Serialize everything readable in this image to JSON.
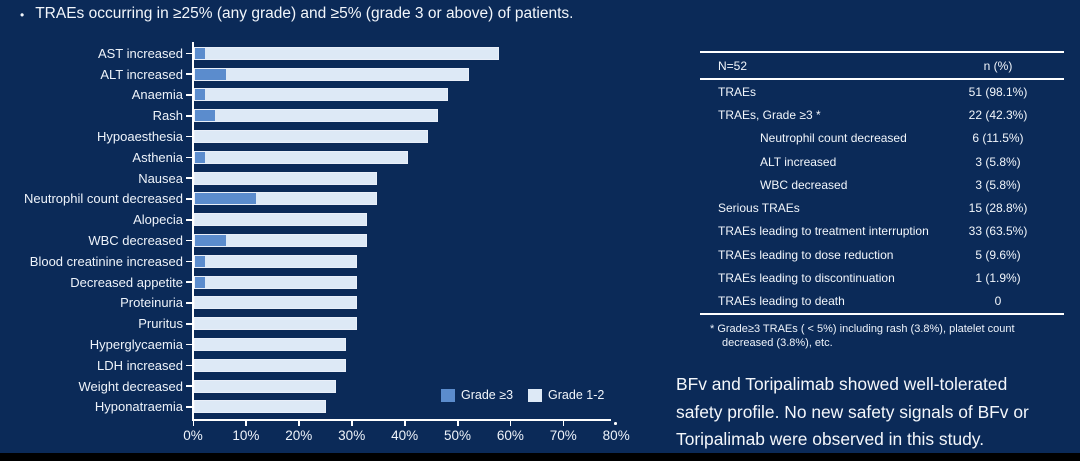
{
  "slide": {
    "bullet": "•",
    "title": "TRAEs occurring in ≥25% (any grade) and ≥5% (grade 3 or above) of patients."
  },
  "chart_data": {
    "type": "bar",
    "orientation": "horizontal",
    "stacked": true,
    "categories": [
      "AST increased",
      "ALT increased",
      "Anaemia",
      "Rash",
      "Hypoaesthesia",
      "Asthenia",
      "Nausea",
      "Neutrophil count decreased",
      "Alopecia",
      "WBC decreased",
      "Blood creatinine increased",
      "Decreased appetite",
      "Proteinuria",
      "Pruritus",
      "Hyperglycaemia",
      "LDH increased",
      "Weight decreased",
      "Hyponatraemia"
    ],
    "series": [
      {
        "name": "Grade ≥3",
        "color": "#5b8ccd",
        "values": [
          1.9,
          5.8,
          1.9,
          3.8,
          0,
          1.9,
          0,
          11.5,
          0,
          5.8,
          1.9,
          1.9,
          0,
          0,
          0,
          0,
          0,
          0
        ]
      },
      {
        "name": "Grade 1-2",
        "color": "#dde9f6",
        "values": [
          55.8,
          46.1,
          46.2,
          42.4,
          44.2,
          38.5,
          34.6,
          23.1,
          32.7,
          26.9,
          28.9,
          28.9,
          30.8,
          30.8,
          28.8,
          28.8,
          26.9,
          25.0
        ]
      }
    ],
    "totals": [
      57.7,
      51.9,
      48.1,
      46.2,
      44.2,
      40.4,
      34.6,
      34.6,
      32.7,
      32.7,
      30.8,
      30.8,
      30.8,
      30.8,
      28.8,
      28.8,
      26.9,
      25.0
    ],
    "x_ticks": [
      "0%",
      "10%",
      "20%",
      "30%",
      "40%",
      "50%",
      "60%",
      "70%",
      "80%"
    ],
    "xlim": [
      0,
      80
    ],
    "grid": false,
    "legend_position": "bottom-right"
  },
  "table": {
    "header": {
      "left": "N=52",
      "right": "n (%)"
    },
    "rows": [
      {
        "label": "TRAEs",
        "value": "51 (98.1%)",
        "indent": false
      },
      {
        "label": "TRAEs, Grade ≥3 *",
        "value": "22 (42.3%)",
        "indent": false
      },
      {
        "label": "Neutrophil count decreased",
        "value": "6 (11.5%)",
        "indent": true
      },
      {
        "label": "ALT increased",
        "value": "3 (5.8%)",
        "indent": true
      },
      {
        "label": "WBC decreased",
        "value": "3 (5.8%)",
        "indent": true
      },
      {
        "label": "Serious TRAEs",
        "value": "15 (28.8%)",
        "indent": false
      },
      {
        "label": "TRAEs leading to treatment interruption",
        "value": "33 (63.5%)",
        "indent": false
      },
      {
        "label": "TRAEs leading to dose reduction",
        "value": "5 (9.6%)",
        "indent": false
      },
      {
        "label": "TRAEs leading to discontinuation",
        "value": "1 (1.9%)",
        "indent": false
      },
      {
        "label": "TRAEs leading to death",
        "value": "0",
        "indent": false
      }
    ],
    "footnote_lines": [
      "* Grade≥3 TRAEs ( < 5%) including rash (3.8%), platelet count",
      "decreased (3.8%), etc."
    ]
  },
  "note": {
    "lines": [
      "BFv and Toripalimab showed well-tolerated",
      "safety profile. No new safety signals of BFv or",
      "Toripalimab were observed in this study."
    ]
  },
  "colors": {
    "background": "#0b2a58",
    "grade3": "#5b8ccd",
    "grade12": "#dde9f6",
    "axis": "#ffffff"
  }
}
